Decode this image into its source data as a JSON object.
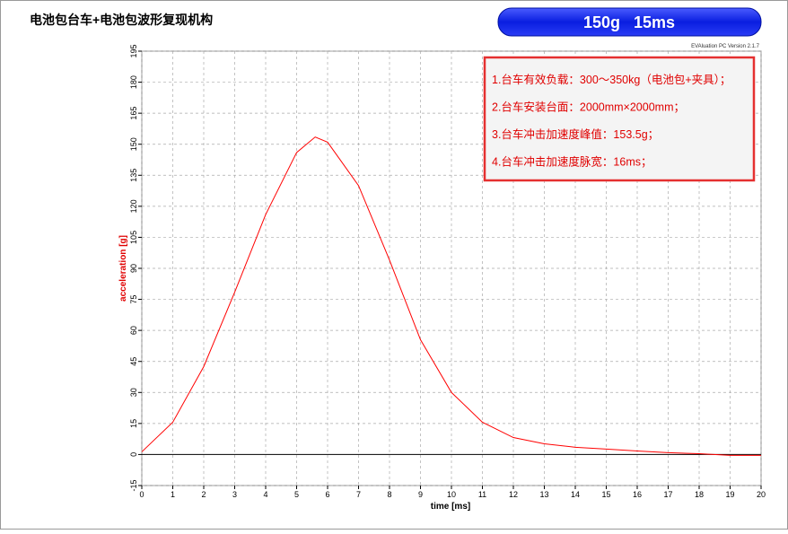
{
  "header": {
    "title": "电池包台车+电池包波形复现机构",
    "badge": "150g 15ms"
  },
  "version": "EVAluation PC Version 2.1.7",
  "notes": [
    "1.台车有效负载：300～350kg（电池包+夹具）；",
    "2.台车安装台面：2000mm×2000mm；",
    "3.台车冲击加速度峰值：153.5g；",
    "4.台车冲击加速度脉宽：16ms；"
  ],
  "chart_data": {
    "type": "line",
    "xlabel": "time [ms]",
    "ylabel": "acceleration [g]",
    "color": "#ff0000",
    "x": [
      0,
      1,
      2,
      3,
      4,
      5,
      5.6,
      6,
      7,
      8,
      9,
      10,
      11,
      12,
      13,
      14,
      15,
      16,
      17,
      18,
      19,
      20
    ],
    "values": [
      1.3,
      15.6,
      42.5,
      78.5,
      116,
      146,
      153.5,
      151,
      130,
      94,
      55.5,
      30,
      15.6,
      8.2,
      5.2,
      3.5,
      2.6,
      1.7,
      0.9,
      0.4,
      -0.4,
      -0.4
    ],
    "xlim": [
      0,
      20
    ],
    "xticks": [
      0,
      1,
      2,
      3,
      4,
      5,
      6,
      7,
      8,
      9,
      10,
      11,
      12,
      13,
      14,
      15,
      16,
      17,
      18,
      19,
      20
    ],
    "ylim": [
      -15,
      195
    ],
    "yticks": [
      -15,
      0,
      15,
      30,
      45,
      60,
      75,
      90,
      105,
      120,
      135,
      150,
      165,
      180,
      195
    ],
    "grid": true
  }
}
